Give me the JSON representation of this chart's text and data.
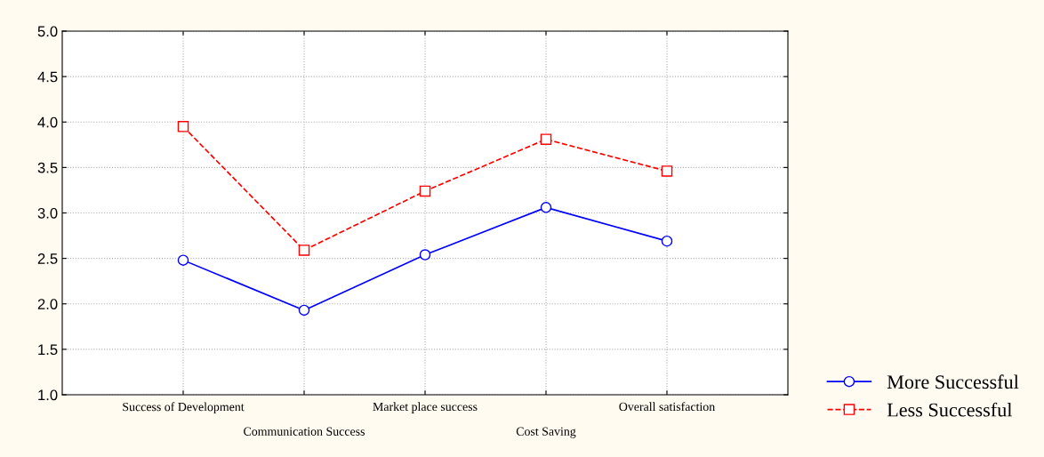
{
  "chart_data": {
    "type": "line",
    "categories": [
      "Success of Development",
      "Communication Success",
      "Market place success",
      "Cost Saving",
      "Overall satisfaction"
    ],
    "series": [
      {
        "name": "More Successful",
        "color": "#0000ff",
        "values": [
          2.48,
          1.93,
          2.54,
          3.06,
          2.69
        ],
        "marker": "circle",
        "line_style": "solid"
      },
      {
        "name": "Less Successful",
        "color": "#ff0000",
        "values": [
          3.95,
          2.59,
          3.24,
          3.81,
          3.46
        ],
        "marker": "square",
        "line_style": "dashed"
      }
    ],
    "ylim": [
      1.0,
      5.0
    ],
    "yticks": [
      {
        "value": 1.0,
        "label": "1.0"
      },
      {
        "value": 1.5,
        "label": "1.5"
      },
      {
        "value": 2.0,
        "label": "2.0"
      },
      {
        "value": 2.5,
        "label": "2.5"
      },
      {
        "value": 3.0,
        "label": "3.0"
      },
      {
        "value": 3.5,
        "label": "3.5"
      },
      {
        "value": 4.0,
        "label": "4.0"
      },
      {
        "value": 4.5,
        "label": "4.5"
      },
      {
        "value": 5.0,
        "label": "5.0"
      }
    ],
    "grid": true,
    "legend": "bottom right"
  }
}
